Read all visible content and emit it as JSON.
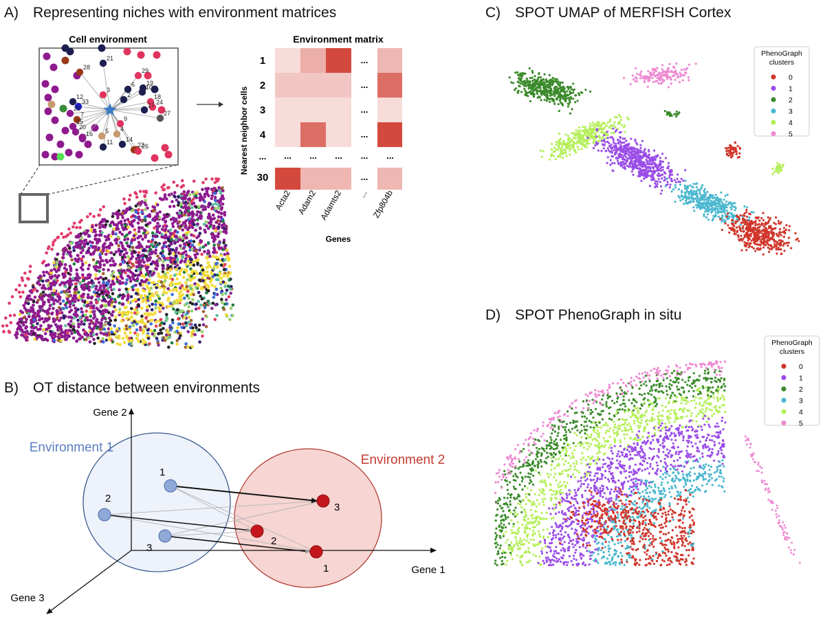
{
  "panel_a": {
    "title": "A) Representing niches with environment matrices",
    "cell_environment_label": "Cell environment",
    "neighbor_numbers": [
      "28",
      "21",
      "29",
      "19",
      "17",
      "10",
      "18",
      "24",
      "27",
      "3",
      "6",
      "2",
      "12",
      "33",
      "25",
      "7",
      "15",
      "20",
      "16",
      "5",
      "14",
      "11",
      "22",
      "26",
      "9",
      "4"
    ],
    "environment_matrix": {
      "title": "Environment matrix",
      "ylabel": "Nearest neighbor cells",
      "xlabel": "Genes",
      "rows": [
        "1",
        "2",
        "3",
        "4",
        "...",
        "30"
      ],
      "cols": [
        "Acta2",
        "Adam2",
        "Adamts2",
        "...",
        "Zfp804b"
      ],
      "ellipsis": "..."
    }
  },
  "panel_b": {
    "title": "B) OT distance between environments",
    "axis_gene1": "Gene 1",
    "axis_gene2": "Gene 2",
    "axis_gene3": "Gene 3",
    "env1_label": "Environment 1",
    "env2_label": "Environment 2",
    "env1_points": [
      "1",
      "2",
      "3"
    ],
    "env2_points": [
      "3",
      "2",
      "1"
    ]
  },
  "panel_c": {
    "title": "C) SPOT UMAP of MERFISH Cortex",
    "legend_title_line1": "PhenoGraph",
    "legend_title_line2": "clusters"
  },
  "panel_d": {
    "title": "D) SPOT PhenoGraph in situ",
    "legend_title_line1": "PhenoGraph",
    "legend_title_line2": "clusters"
  },
  "clusters": [
    {
      "label": "0",
      "color": "#d0362b"
    },
    {
      "label": "1",
      "color": "#9a4de8"
    },
    {
      "label": "2",
      "color": "#3a8a2a"
    },
    {
      "label": "3",
      "color": "#4cb8cf"
    },
    {
      "label": "4",
      "color": "#b5ef5a"
    },
    {
      "label": "5",
      "color": "#ee8ad2"
    }
  ],
  "colors": {
    "env1_fill": "#eef2fa",
    "env1_stroke": "#3a5a90",
    "env1_point": "#8fa9d8",
    "env1_label": "#5a7ec2",
    "env2_fill": "#f6d5d2",
    "env2_stroke": "#b23c34",
    "env2_point": "#c4161c",
    "env2_label": "#c23a30"
  },
  "chart_data": [
    {
      "type": "heatmap",
      "title": "Environment matrix",
      "xlabel": "Genes",
      "ylabel": "Nearest neighbor cells",
      "rows": [
        "1",
        "2",
        "3",
        "4",
        "...",
        "30"
      ],
      "cols": [
        "Acta2",
        "Adam2",
        "Adamts2",
        "...",
        "Zfp804b"
      ],
      "values": [
        [
          0.1,
          0.35,
          0.9,
          null,
          0.3
        ],
        [
          0.22,
          0.22,
          0.22,
          null,
          0.7
        ],
        [
          0.1,
          0.1,
          0.1,
          null,
          0.1
        ],
        [
          0.1,
          0.7,
          0.1,
          null,
          0.9
        ],
        [
          null,
          null,
          null,
          null,
          null
        ],
        [
          0.9,
          0.3,
          0.3,
          null,
          0.3
        ]
      ]
    },
    {
      "type": "scatter",
      "title": "SPOT UMAP of MERFISH Cortex",
      "legend": "PhenoGraph clusters",
      "series": [
        "0",
        "1",
        "2",
        "3",
        "4",
        "5"
      ]
    },
    {
      "type": "scatter",
      "title": "SPOT PhenoGraph in situ",
      "legend": "PhenoGraph clusters",
      "series": [
        "0",
        "1",
        "2",
        "3",
        "4",
        "5"
      ]
    }
  ]
}
